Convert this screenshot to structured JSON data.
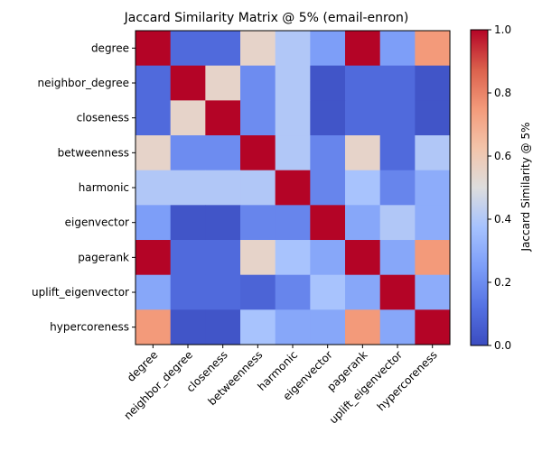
{
  "chart_data": {
    "type": "heatmap",
    "title": "Jaccard Similarity Matrix @ 5% (email-enron)",
    "rows": [
      "degree",
      "neighbor_degree",
      "closeness",
      "betweenness",
      "harmonic",
      "eigenvector",
      "pagerank",
      "uplift_eigenvector",
      "hypercoreness"
    ],
    "columns": [
      "degree",
      "neighbor_degree",
      "closeness",
      "betweenness",
      "harmonic",
      "eigenvector",
      "pagerank",
      "uplift_eigenvector",
      "hypercoreness"
    ],
    "values": [
      [
        1.0,
        0.1,
        0.1,
        0.55,
        0.4,
        0.25,
        1.0,
        0.25,
        0.75
      ],
      [
        0.1,
        1.0,
        0.55,
        0.2,
        0.4,
        0.03,
        0.1,
        0.1,
        0.03
      ],
      [
        0.1,
        0.55,
        1.0,
        0.2,
        0.4,
        0.03,
        0.1,
        0.1,
        0.03
      ],
      [
        0.55,
        0.2,
        0.2,
        1.0,
        0.4,
        0.18,
        0.55,
        0.1,
        0.4
      ],
      [
        0.4,
        0.4,
        0.4,
        0.4,
        1.0,
        0.18,
        0.38,
        0.18,
        0.3
      ],
      [
        0.25,
        0.03,
        0.03,
        0.18,
        0.18,
        1.0,
        0.28,
        0.4,
        0.3
      ],
      [
        1.0,
        0.1,
        0.1,
        0.55,
        0.38,
        0.28,
        1.0,
        0.28,
        0.75
      ],
      [
        0.28,
        0.1,
        0.1,
        0.08,
        0.18,
        0.38,
        0.28,
        1.0,
        0.3
      ],
      [
        0.75,
        0.03,
        0.03,
        0.38,
        0.28,
        0.28,
        0.75,
        0.28,
        1.0
      ]
    ],
    "colormap": "coolwarm",
    "vmin": 0.0,
    "vmax": 1.0,
    "colorbar": {
      "label": "Jaccard Similarity @ 5%",
      "ticks": [
        "0.0",
        "0.2",
        "0.4",
        "0.6",
        "0.8",
        "1.0"
      ]
    }
  }
}
